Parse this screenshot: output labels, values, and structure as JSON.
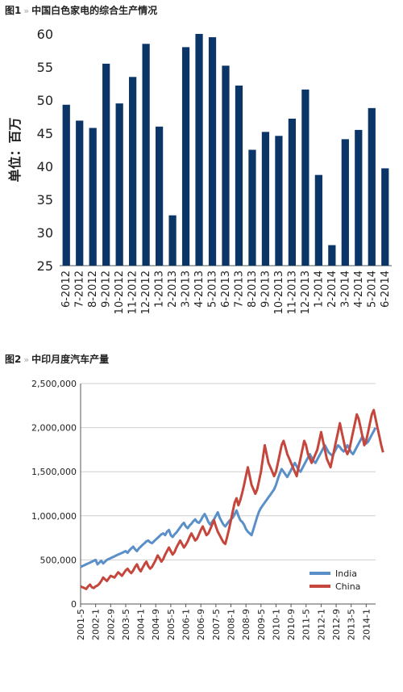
{
  "chart_data": [
    {
      "type": "bar",
      "header": {
        "label": "图1",
        "separator": "»",
        "title": "中国白色家电的综合生产情况"
      },
      "ylabel": "单位：百万",
      "ylim": [
        25,
        60
      ],
      "yticks": [
        25,
        30,
        35,
        40,
        45,
        50,
        55,
        60
      ],
      "categories": [
        "6-2012",
        "7-2012",
        "8-2012",
        "9-2012",
        "10-2012",
        "11-2012",
        "12-2012",
        "1-2013",
        "2-2013",
        "3-2013",
        "4-2013",
        "5-2013",
        "6-2013",
        "7-2013",
        "8-2013",
        "9-2013",
        "10-2013",
        "11-2013",
        "12-2013",
        "1-2014",
        "2-2014",
        "3-2014",
        "4-2014",
        "5-2014",
        "6-2014"
      ],
      "values": [
        49.3,
        46.9,
        45.8,
        55.5,
        49.5,
        53.5,
        58.5,
        46.0,
        32.6,
        58.0,
        60.0,
        59.5,
        55.2,
        52.2,
        42.5,
        45.2,
        44.6,
        47.2,
        51.6,
        38.7,
        28.1,
        44.1,
        45.5,
        48.8,
        39.7
      ],
      "bar_color": "#0a3566",
      "grid": false
    },
    {
      "type": "line",
      "header": {
        "label": "图2",
        "separator": "»",
        "title": "中印月度汽车产量"
      },
      "ylim": [
        0,
        2500000
      ],
      "yticks": [
        0,
        500000,
        1000000,
        1500000,
        2000000,
        2500000
      ],
      "ytick_labels": [
        "0",
        "500,000",
        "1,000,000",
        "1,500,000",
        "2,000,000",
        "2,500,000"
      ],
      "x_start": "2001-5",
      "x_tick_labels": [
        "2001-5",
        "2002-1",
        "2002-9",
        "2003-5",
        "2004-1",
        "2004-9",
        "2005-5",
        "2006-1",
        "2006-9",
        "2007-5",
        "2008-1",
        "2008-9",
        "2009-5",
        "2010-1",
        "2010-9",
        "2011-5",
        "2012-1",
        "2012-9",
        "2013-5",
        "2014-1"
      ],
      "grid": true,
      "legend_position": "bottom-right",
      "series": [
        {
          "name": "India",
          "color": "#5b8fc7",
          "values": [
            420000,
            430000,
            440000,
            450000,
            460000,
            470000,
            480000,
            490000,
            500000,
            450000,
            470000,
            490000,
            460000,
            480000,
            500000,
            510000,
            520000,
            530000,
            540000,
            550000,
            560000,
            570000,
            580000,
            590000,
            600000,
            580000,
            610000,
            630000,
            650000,
            620000,
            600000,
            630000,
            650000,
            670000,
            690000,
            710000,
            720000,
            700000,
            690000,
            710000,
            730000,
            750000,
            770000,
            790000,
            800000,
            780000,
            820000,
            840000,
            780000,
            760000,
            790000,
            810000,
            840000,
            870000,
            900000,
            920000,
            880000,
            860000,
            890000,
            910000,
            940000,
            960000,
            930000,
            920000,
            950000,
            990000,
            1020000,
            980000,
            930000,
            900000,
            930000,
            960000,
            1000000,
            1040000,
            980000,
            940000,
            900000,
            880000,
            910000,
            940000,
            960000,
            980000,
            1020000,
            1060000,
            1000000,
            950000,
            930000,
            900000,
            850000,
            820000,
            800000,
            780000,
            850000,
            920000,
            990000,
            1050000,
            1090000,
            1120000,
            1150000,
            1180000,
            1210000,
            1240000,
            1270000,
            1300000,
            1350000,
            1420000,
            1480000,
            1530000,
            1500000,
            1470000,
            1440000,
            1480000,
            1520000,
            1560000,
            1600000,
            1560000,
            1520000,
            1500000,
            1540000,
            1580000,
            1620000,
            1660000,
            1700000,
            1660000,
            1620000,
            1600000,
            1640000,
            1680000,
            1720000,
            1760000,
            1800000,
            1760000,
            1720000,
            1700000,
            1680000,
            1720000,
            1760000,
            1800000,
            1780000,
            1750000,
            1730000,
            1760000,
            1800000,
            1760000,
            1720000,
            1700000,
            1740000,
            1780000,
            1820000,
            1860000,
            1900000,
            1860000,
            1820000,
            1840000,
            1880000,
            1920000,
            1960000,
            2000000
          ]
        },
        {
          "name": "China",
          "color": "#c5463c",
          "values": [
            200000,
            190000,
            180000,
            170000,
            200000,
            220000,
            190000,
            180000,
            200000,
            210000,
            230000,
            260000,
            300000,
            280000,
            260000,
            290000,
            320000,
            310000,
            300000,
            330000,
            360000,
            340000,
            320000,
            350000,
            380000,
            400000,
            370000,
            350000,
            380000,
            420000,
            450000,
            400000,
            370000,
            410000,
            450000,
            480000,
            430000,
            400000,
            420000,
            460000,
            500000,
            550000,
            520000,
            480000,
            510000,
            560000,
            600000,
            640000,
            600000,
            560000,
            590000,
            640000,
            680000,
            720000,
            680000,
            640000,
            670000,
            710000,
            760000,
            800000,
            760000,
            720000,
            740000,
            790000,
            840000,
            880000,
            830000,
            780000,
            800000,
            850000,
            900000,
            950000,
            880000,
            820000,
            780000,
            740000,
            700000,
            680000,
            760000,
            850000,
            950000,
            1050000,
            1150000,
            1200000,
            1120000,
            1180000,
            1260000,
            1350000,
            1450000,
            1550000,
            1450000,
            1350000,
            1300000,
            1250000,
            1300000,
            1400000,
            1500000,
            1650000,
            1800000,
            1700000,
            1600000,
            1550000,
            1500000,
            1450000,
            1500000,
            1600000,
            1700000,
            1800000,
            1850000,
            1780000,
            1700000,
            1650000,
            1600000,
            1550000,
            1500000,
            1450000,
            1550000,
            1650000,
            1750000,
            1850000,
            1800000,
            1700000,
            1650000,
            1600000,
            1650000,
            1700000,
            1750000,
            1850000,
            1950000,
            1850000,
            1750000,
            1650000,
            1600000,
            1550000,
            1650000,
            1750000,
            1850000,
            1950000,
            2050000,
            1950000,
            1850000,
            1750000,
            1700000,
            1750000,
            1850000,
            1950000,
            2050000,
            2150000,
            2100000,
            2000000,
            1900000,
            1800000,
            1850000,
            1950000,
            2050000,
            2150000,
            2200000,
            2100000,
            2000000,
            1900000,
            1800000,
            1720000
          ]
        }
      ]
    }
  ]
}
